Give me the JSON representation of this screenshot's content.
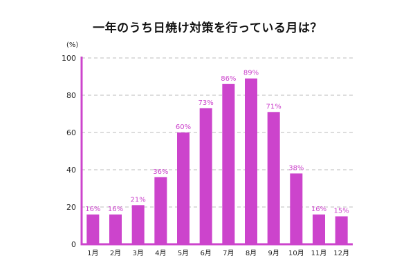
{
  "chart_data": {
    "type": "bar",
    "title": "一年のうち日焼け対策を行っている月は？",
    "ylabel": "(%)",
    "xlabel": "",
    "ylim": [
      0,
      100
    ],
    "yticks": [
      "0",
      "20",
      "40",
      "60",
      "80",
      "100"
    ],
    "categories": [
      "1月",
      "2月",
      "3月",
      "4月",
      "5月",
      "6月",
      "7月",
      "8月",
      "9月",
      "10月",
      "11月",
      "12月"
    ],
    "values": [
      16,
      16,
      21,
      36,
      60,
      73,
      86,
      89,
      71,
      38,
      16,
      15
    ],
    "data_labels": [
      "16%",
      "16%",
      "21%",
      "36%",
      "60%",
      "73%",
      "86%",
      "89%",
      "71%",
      "38%",
      "16%",
      "15%"
    ],
    "grid": true,
    "colors": {
      "bar": "#cc44cc",
      "axis": "#cc44cc",
      "label": "#cc44cc",
      "grid": "#bbbbbb"
    }
  }
}
